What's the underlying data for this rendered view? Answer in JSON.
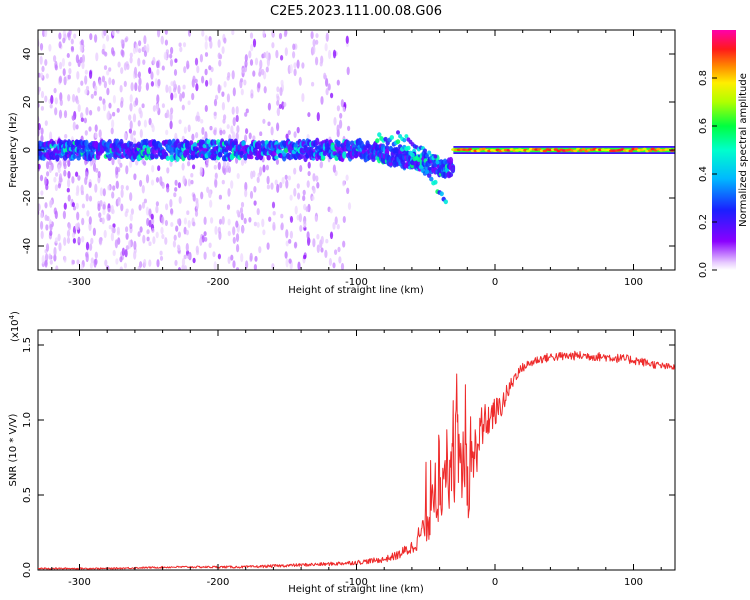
{
  "title": "C2E5.2023.111.00.08.G06",
  "colors": {
    "snr_line": "#ee2a2a",
    "axis": "#000000",
    "background": "#ffffff"
  },
  "chart_data": [
    {
      "type": "heatmap",
      "xlabel": "Height of straight line (km)",
      "ylabel": "Frequency (Hz)",
      "xlim": [
        -330,
        130
      ],
      "ylim": [
        -50,
        50
      ],
      "xticks": [
        -300,
        -200,
        -100,
        0,
        100
      ],
      "yticks": [
        -40,
        -20,
        0,
        20,
        40
      ],
      "xtick_labels": [
        "-300",
        "-200",
        "-100",
        "0",
        "100"
      ],
      "ytick_labels": [
        "-40",
        "-20",
        "0",
        "20",
        "40"
      ],
      "colorbar": {
        "label": "Normalized spectral amplitude",
        "range": [
          0,
          1
        ],
        "ticks": [
          0.0,
          0.2,
          0.4,
          0.6,
          0.8
        ],
        "tick_labels": [
          "0.0",
          "0.2",
          "0.4",
          "0.6",
          "0.8"
        ],
        "colormap": "rainbow (violet-blue-cyan-green-yellow-red-magenta)"
      },
      "features": [
        {
          "name": "noise scatter",
          "x_range": [
            -330,
            -105
          ],
          "freq_range": [
            -50,
            50
          ],
          "amplitude": 0.05
        },
        {
          "name": "main band",
          "x_range": [
            -330,
            130
          ],
          "freq_center": 0,
          "amplitude": 0.3
        },
        {
          "name": "descending branch",
          "x_from": -85,
          "x_to": -35,
          "freq_from": 5,
          "freq_to": -23,
          "amplitude": 0.35
        },
        {
          "name": "coherent carrier",
          "x_range": [
            -30,
            130
          ],
          "freq_center": 0,
          "amplitude": 0.9
        }
      ]
    },
    {
      "type": "line",
      "xlabel": "Height of straight line (km)",
      "ylabel": "SNR (10 * V/V)",
      "yscale_label": "(x10",
      "yscale_exponent": "4",
      "yscale_suffix": ")",
      "xlim": [
        -330,
        130
      ],
      "ylim": [
        0,
        1.6
      ],
      "xticks": [
        -300,
        -200,
        -100,
        0,
        100
      ],
      "yticks": [
        0.0,
        0.5,
        1.0,
        1.5
      ],
      "xtick_labels": [
        "-300",
        "-200",
        "-100",
        "0",
        "100"
      ],
      "ytick_labels": [
        "0.0",
        "0.5",
        "1.0",
        "1.5"
      ],
      "series": [
        {
          "name": "SNR",
          "x": [
            -330,
            -280,
            -230,
            -180,
            -150,
            -120,
            -100,
            -80,
            -70,
            -60,
            -55,
            -50,
            -45,
            -40,
            -35,
            -30,
            -25,
            -20,
            -15,
            -10,
            -5,
            0,
            5,
            10,
            15,
            20,
            30,
            40,
            60,
            80,
            100,
            120,
            130
          ],
          "y": [
            0.01,
            0.01,
            0.02,
            0.02,
            0.03,
            0.04,
            0.05,
            0.07,
            0.1,
            0.15,
            0.22,
            0.3,
            0.4,
            0.55,
            0.65,
            0.8,
            0.7,
            0.55,
            0.75,
            0.95,
            1.0,
            1.05,
            1.1,
            1.2,
            1.3,
            1.35,
            1.4,
            1.42,
            1.43,
            1.42,
            1.4,
            1.36,
            1.35
          ],
          "noise": [
            0.005,
            0.005,
            0.006,
            0.008,
            0.01,
            0.012,
            0.015,
            0.02,
            0.03,
            0.05,
            0.08,
            0.12,
            0.18,
            0.25,
            0.3,
            0.35,
            0.3,
            0.25,
            0.2,
            0.15,
            0.12,
            0.1,
            0.08,
            0.06,
            0.04,
            0.03,
            0.03,
            0.03,
            0.03,
            0.03,
            0.03,
            0.025,
            0.02
          ]
        }
      ]
    }
  ]
}
